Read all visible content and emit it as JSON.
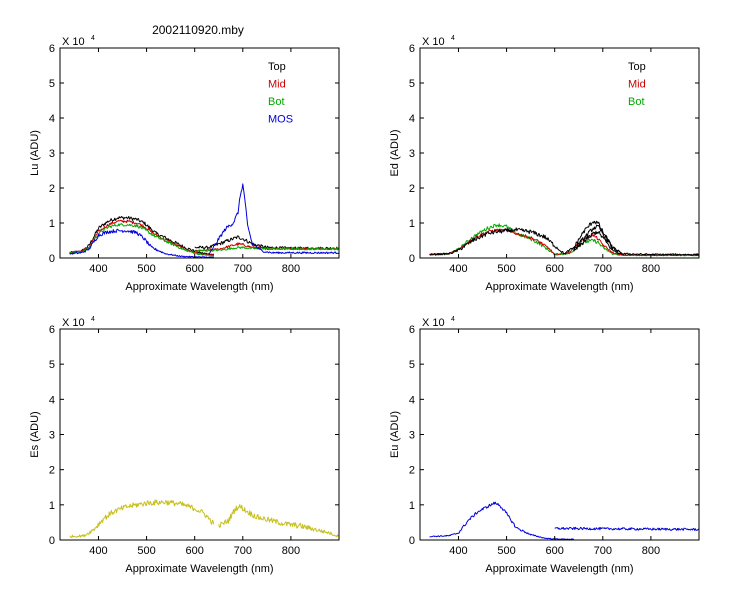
{
  "figure_title": "2002110920.mby",
  "chart_data": [
    {
      "id": "lu",
      "type": "line",
      "ylabel": "Lu (ADU)",
      "xlabel": "Approximate Wavelength (nm)",
      "multiplier": "X 10",
      "exponent": "4",
      "xlim": [
        320,
        900
      ],
      "ylim": [
        0,
        6
      ],
      "xticks": [
        "400",
        "500",
        "600",
        "700",
        "800"
      ],
      "yticks": [
        "0",
        "1",
        "2",
        "3",
        "4",
        "5",
        "6"
      ],
      "legend": [
        {
          "label": "Top",
          "color": "#000000"
        },
        {
          "label": "Mid",
          "color": "#cc0000"
        },
        {
          "label": "Bot",
          "color": "#00aa00"
        },
        {
          "label": "MOS",
          "color": "#0000dd"
        }
      ],
      "series": [
        {
          "name": "Top",
          "color": "#000000",
          "noise": 0.05,
          "segments": [
            {
              "x": [
                340,
                365,
                380,
                400,
                420,
                440,
                460,
                480,
                495,
                520,
                550,
                580,
                610,
                640
              ],
              "y": [
                0.15,
                0.2,
                0.35,
                0.85,
                1.05,
                1.15,
                1.15,
                1.1,
                1.0,
                0.7,
                0.5,
                0.3,
                0.15,
                0.1
              ]
            },
            {
              "x": [
                600,
                630,
                660,
                690,
                700,
                720,
                750,
                800,
                900
              ],
              "y": [
                0.3,
                0.3,
                0.45,
                0.6,
                0.55,
                0.4,
                0.3,
                0.28,
                0.28
              ]
            }
          ]
        },
        {
          "name": "Mid",
          "color": "#cc0000",
          "noise": 0.04,
          "segments": [
            {
              "x": [
                340,
                365,
                380,
                400,
                420,
                440,
                460,
                480,
                495,
                520,
                550,
                580,
                610,
                640
              ],
              "y": [
                0.15,
                0.2,
                0.3,
                0.75,
                0.95,
                1.05,
                1.05,
                1.0,
                0.9,
                0.65,
                0.45,
                0.25,
                0.12,
                0.08
              ]
            },
            {
              "x": [
                600,
                650,
                690,
                700,
                720,
                750,
                800,
                900
              ],
              "y": [
                0.2,
                0.25,
                0.4,
                0.38,
                0.3,
                0.27,
                0.27,
                0.27
              ]
            }
          ]
        },
        {
          "name": "Bot",
          "color": "#00aa00",
          "noise": 0.04,
          "segments": [
            {
              "x": [
                340,
                365,
                380,
                400,
                420,
                440,
                460,
                480,
                495,
                520,
                550,
                580,
                610,
                640
              ],
              "y": [
                0.15,
                0.18,
                0.28,
                0.7,
                0.88,
                0.95,
                0.95,
                0.92,
                0.82,
                0.6,
                0.42,
                0.22,
                0.1,
                0.06
              ]
            },
            {
              "x": [
                600,
                650,
                690,
                700,
                720,
                750,
                800,
                900
              ],
              "y": [
                0.2,
                0.22,
                0.3,
                0.3,
                0.27,
                0.26,
                0.26,
                0.26
              ]
            }
          ]
        },
        {
          "name": "MOS",
          "color": "#0000dd",
          "noise": 0.05,
          "segments": [
            {
              "x": [
                340,
                365,
                380,
                400,
                420,
                440,
                460,
                480,
                495,
                510,
                540,
                570,
                600,
                640
              ],
              "y": [
                0.12,
                0.15,
                0.25,
                0.65,
                0.75,
                0.78,
                0.78,
                0.72,
                0.55,
                0.3,
                0.12,
                0.05,
                0.03,
                0.02
              ]
            },
            {
              "x": [
                630,
                650,
                665,
                680,
                690,
                695,
                700,
                705,
                710,
                720,
                740,
                760,
                800,
                900
              ],
              "y": [
                0.1,
                0.55,
                0.85,
                1.0,
                1.3,
                1.8,
                2.1,
                1.6,
                0.9,
                0.4,
                0.2,
                0.15,
                0.15,
                0.15
              ]
            }
          ]
        }
      ]
    },
    {
      "id": "ed",
      "type": "line",
      "ylabel": "Ed (ADU)",
      "xlabel": "Approximate Wavelength (nm)",
      "multiplier": "X 10",
      "exponent": "4",
      "xlim": [
        320,
        900
      ],
      "ylim": [
        0,
        6
      ],
      "xticks": [
        "400",
        "500",
        "600",
        "700",
        "800"
      ],
      "yticks": [
        "0",
        "1",
        "2",
        "3",
        "4",
        "5",
        "6"
      ],
      "legend": [
        {
          "label": "Top",
          "color": "#000000"
        },
        {
          "label": "Mid",
          "color": "#cc0000"
        },
        {
          "label": "Bot",
          "color": "#00aa00"
        }
      ],
      "series": [
        {
          "name": "Bot",
          "color": "#00aa00",
          "noise": 0.05,
          "segments": [
            {
              "x": [
                340,
                380,
                400,
                430,
                460,
                480,
                500,
                520,
                550,
                570,
                590,
                600,
                630,
                660,
                680,
                690,
                700,
                720,
                740,
                800,
                900
              ],
              "y": [
                0.1,
                0.12,
                0.25,
                0.6,
                0.85,
                0.95,
                0.9,
                0.7,
                0.55,
                0.4,
                0.2,
                0.1,
                0.12,
                0.45,
                0.5,
                0.45,
                0.3,
                0.12,
                0.08,
                0.08,
                0.08
              ]
            }
          ]
        },
        {
          "name": "Mid",
          "color": "#cc0000",
          "noise": 0.04,
          "segments": [
            {
              "x": [
                340,
                380,
                400,
                430,
                460,
                480,
                500,
                520,
                550,
                570,
                590,
                600,
                630,
                660,
                680,
                690,
                700,
                720,
                740,
                800,
                900
              ],
              "y": [
                0.1,
                0.12,
                0.25,
                0.55,
                0.75,
                0.8,
                0.78,
                0.7,
                0.58,
                0.45,
                0.25,
                0.1,
                0.15,
                0.55,
                0.65,
                0.55,
                0.38,
                0.15,
                0.08,
                0.08,
                0.08
              ]
            }
          ]
        },
        {
          "name": "Top",
          "color": "#000000",
          "noise": 0.06,
          "segments": [
            {
              "x": [
                340,
                380,
                400,
                430,
                460,
                480,
                500,
                520,
                550,
                580,
                600,
                620,
                640,
                660,
                680,
                690,
                700,
                720,
                740,
                800,
                900
              ],
              "y": [
                0.1,
                0.12,
                0.22,
                0.5,
                0.7,
                0.75,
                0.78,
                0.8,
                0.75,
                0.6,
                0.35,
                0.12,
                0.3,
                0.75,
                1.05,
                1.0,
                0.75,
                0.3,
                0.12,
                0.1,
                0.1
              ]
            },
            {
              "x": [
                640,
                660,
                680,
                690,
                700,
                720,
                740
              ],
              "y": [
                0.25,
                0.55,
                0.85,
                0.9,
                0.7,
                0.3,
                0.12
              ]
            },
            {
              "x": [
                640,
                660,
                680,
                690,
                700,
                720,
                740
              ],
              "y": [
                0.2,
                0.45,
                0.7,
                0.75,
                0.58,
                0.22,
                0.1
              ]
            }
          ]
        }
      ]
    },
    {
      "id": "es",
      "type": "line",
      "ylabel": "Es (ADU)",
      "xlabel": "Approximate Wavelength (nm)",
      "multiplier": "X 10",
      "exponent": "4",
      "xlim": [
        320,
        900
      ],
      "ylim": [
        0,
        6
      ],
      "xticks": [
        "400",
        "500",
        "600",
        "700",
        "800"
      ],
      "yticks": [
        "0",
        "1",
        "2",
        "3",
        "4",
        "5",
        "6"
      ],
      "legend": [],
      "series": [
        {
          "name": "",
          "color": "#c8c020",
          "noise": 0.08,
          "segments": [
            {
              "x": [
                340,
                370,
                390,
                410,
                430,
                460,
                500,
                540,
                570,
                600,
                620,
                640
              ],
              "y": [
                0.1,
                0.12,
                0.3,
                0.6,
                0.8,
                0.95,
                1.05,
                1.08,
                1.02,
                0.9,
                0.75,
                0.45
              ]
            },
            {
              "x": [
                650,
                670,
                685,
                695,
                710,
                730,
                760,
                790,
                820,
                850,
                880,
                900
              ],
              "y": [
                0.4,
                0.55,
                0.9,
                0.95,
                0.8,
                0.65,
                0.55,
                0.45,
                0.4,
                0.3,
                0.2,
                0.1
              ]
            }
          ]
        }
      ]
    },
    {
      "id": "eu",
      "type": "line",
      "ylabel": "Eu (ADU)",
      "xlabel": "Approximate Wavelength (nm)",
      "multiplier": "X 10",
      "exponent": "4",
      "xlim": [
        320,
        900
      ],
      "ylim": [
        0,
        6
      ],
      "xticks": [
        "400",
        "500",
        "600",
        "700",
        "800"
      ],
      "yticks": [
        "0",
        "1",
        "2",
        "3",
        "4",
        "5",
        "6"
      ],
      "legend": [],
      "series": [
        {
          "name": "",
          "color": "#0000dd",
          "noise": 0.04,
          "segments": [
            {
              "x": [
                340,
                380,
                400,
                420,
                440,
                460,
                475,
                485,
                500,
                520,
                550,
                580,
                600,
                640
              ],
              "y": [
                0.1,
                0.12,
                0.2,
                0.55,
                0.8,
                0.95,
                1.05,
                1.0,
                0.75,
                0.35,
                0.15,
                0.05,
                0.03,
                0.02
              ]
            },
            {
              "x": [
                600,
                700,
                800,
                900
              ],
              "y": [
                0.33,
                0.32,
                0.31,
                0.3
              ]
            }
          ]
        }
      ]
    }
  ]
}
